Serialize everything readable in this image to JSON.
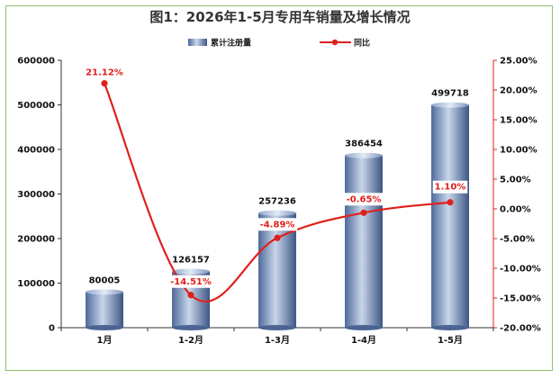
{
  "title": "图1：2026年1-5月专用车销量及增长情况",
  "chart_data": {
    "type": "bar",
    "categories": [
      "1月",
      "1-2月",
      "1-3月",
      "1-4月",
      "1-5月"
    ],
    "series": [
      {
        "name": "累计注册量",
        "type": "bar",
        "axis": "left",
        "values": [
          80005,
          126157,
          257236,
          386454,
          499718
        ]
      },
      {
        "name": "同比",
        "type": "line",
        "axis": "right",
        "values": [
          21.12,
          -14.51,
          -4.89,
          -0.65,
          1.1
        ]
      }
    ],
    "left_axis": {
      "min": 0,
      "max": 600000,
      "step": 100000,
      "ticks": [
        "0",
        "100000",
        "200000",
        "300000",
        "400000",
        "500000",
        "600000"
      ]
    },
    "right_axis": {
      "min": -20,
      "max": 25,
      "step": 5,
      "ticks": [
        "-20.00%",
        "-15.00%",
        "-10.00%",
        "-5.00%",
        "0.00%",
        "5.00%",
        "10.00%",
        "15.00%",
        "20.00%",
        "25.00%"
      ]
    },
    "bar_labels": [
      "80005",
      "126157",
      "257236",
      "386454",
      "499718"
    ],
    "line_labels": [
      "21.12%",
      "-14.51%",
      "-4.89%",
      "-0.65%",
      "1.10%"
    ],
    "legend_position": "top",
    "colors": {
      "bar": "#5a78a8",
      "line": "#e0201c",
      "right_axis": "#e0201c"
    }
  }
}
